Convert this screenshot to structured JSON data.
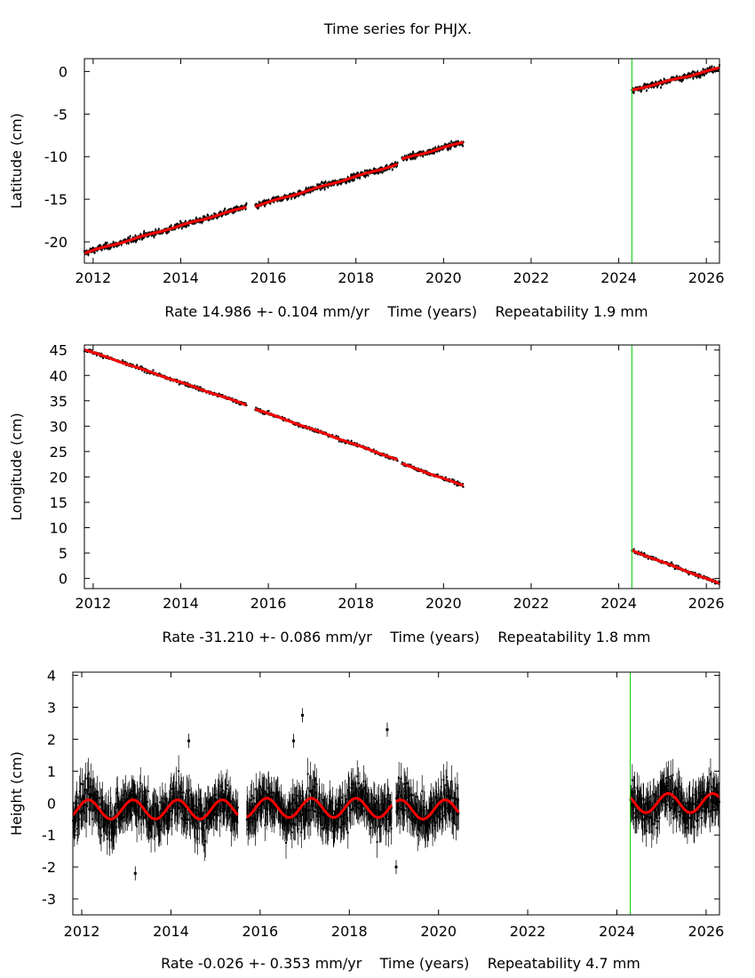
{
  "page": {
    "title": "Time series for PHJX."
  },
  "colors": {
    "model": "#ff0000",
    "data": "#000000",
    "offset_line": "#00cc00",
    "frame": "#000000"
  },
  "offset_epoch": 2024.3,
  "chart_data": [
    {
      "type": "scatter",
      "name": "latitude",
      "ylabel": "Latitude (cm)",
      "footer": {
        "rate": "Rate 14.986 +- 0.104 mm/yr",
        "time": "Time (years)",
        "repeat": "Repeatability 1.9 mm"
      },
      "xlim": [
        2011.8,
        2026.3
      ],
      "ylim": [
        -22.5,
        1.5
      ],
      "xticks": [
        2012,
        2014,
        2016,
        2018,
        2020,
        2022,
        2024,
        2026
      ],
      "yticks": [
        0,
        -5,
        -10,
        -15,
        -20
      ],
      "segments": [
        {
          "x": [
            2011.8,
            2015.5
          ],
          "y": [
            -21.3,
            -15.9
          ]
        },
        {
          "x": [
            2015.7,
            2018.95
          ],
          "y": [
            -15.8,
            -10.9
          ]
        },
        {
          "x": [
            2019.05,
            2020.45
          ],
          "y": [
            -10.3,
            -8.3
          ]
        },
        {
          "x": [
            2024.3,
            2026.3
          ],
          "y": [
            -2.2,
            0.4
          ]
        }
      ],
      "noise_cm": 0.25,
      "seasonal_cm": 0.05,
      "error_cm": 0.2
    },
    {
      "type": "scatter",
      "name": "longitude",
      "ylabel": "Longitude (cm)",
      "footer": {
        "rate": "Rate -31.210 +- 0.086 mm/yr",
        "time": "Time (years)",
        "repeat": "Repeatability 1.8 mm"
      },
      "xlim": [
        2011.8,
        2026.3
      ],
      "ylim": [
        -2,
        46
      ],
      "xticks": [
        2012,
        2014,
        2016,
        2018,
        2020,
        2022,
        2024,
        2026
      ],
      "yticks": [
        45,
        40,
        35,
        30,
        25,
        20,
        15,
        10,
        5,
        0
      ],
      "segments": [
        {
          "x": [
            2011.8,
            2015.5
          ],
          "y": [
            45.1,
            34.2
          ]
        },
        {
          "x": [
            2015.7,
            2018.95
          ],
          "y": [
            33.4,
            23.4
          ]
        },
        {
          "x": [
            2019.05,
            2020.45
          ],
          "y": [
            22.6,
            18.3
          ]
        },
        {
          "x": [
            2024.3,
            2026.3
          ],
          "y": [
            5.5,
            -1.0
          ]
        }
      ],
      "noise_cm": 0.25,
      "seasonal_cm": 0.05,
      "error_cm": 0.2
    },
    {
      "type": "scatter",
      "name": "height",
      "ylabel": "Height (cm)",
      "footer": {
        "rate": "Rate -0.026 +- 0.353 mm/yr",
        "time": "Time (years)",
        "repeat": "Repeatability 4.7 mm"
      },
      "xlim": [
        2011.8,
        2026.3
      ],
      "ylim": [
        -3.5,
        4.1
      ],
      "xticks": [
        2012,
        2014,
        2016,
        2018,
        2020,
        2022,
        2024,
        2026
      ],
      "yticks": [
        4,
        3,
        2,
        1,
        0,
        -1,
        -2,
        -3
      ],
      "segments": [
        {
          "x": [
            2011.8,
            2015.5
          ],
          "y": [
            -0.2,
            -0.2
          ]
        },
        {
          "x": [
            2015.7,
            2018.95
          ],
          "y": [
            -0.15,
            -0.15
          ]
        },
        {
          "x": [
            2019.05,
            2020.45
          ],
          "y": [
            -0.2,
            -0.2
          ]
        },
        {
          "x": [
            2024.3,
            2026.3
          ],
          "y": [
            0.0,
            0.0
          ]
        }
      ],
      "noise_cm": 0.45,
      "seasonal_cm": 0.3,
      "error_cm": 0.5,
      "outliers": [
        [
          2016.95,
          2.75
        ],
        [
          2016.75,
          1.95
        ],
        [
          2018.85,
          2.3
        ],
        [
          2014.4,
          1.95
        ],
        [
          2013.2,
          -2.2
        ],
        [
          2019.05,
          -2.0
        ]
      ]
    }
  ]
}
